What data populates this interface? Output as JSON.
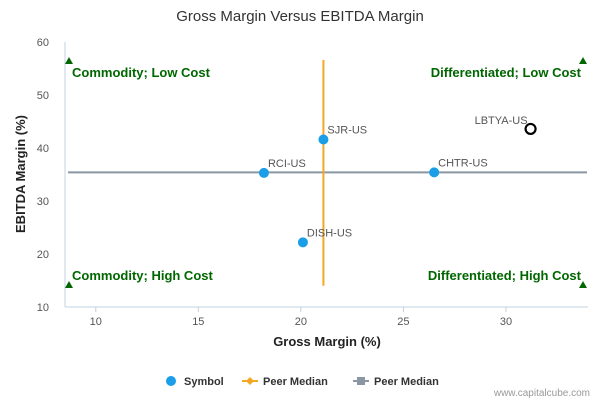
{
  "chart_data": {
    "type": "scatter",
    "title": "Gross Margin Versus EBITDA Margin",
    "xlabel": "Gross Margin (%)",
    "ylabel": "EBITDA Margin (%)",
    "xlim": [
      8.5,
      34
    ],
    "ylim": [
      10,
      60
    ],
    "xticks": [
      10,
      15,
      20,
      25,
      30
    ],
    "yticks": [
      10,
      20,
      30,
      40,
      50,
      60
    ],
    "points": [
      {
        "label": "SJR-US",
        "x": 21.1,
        "y": 41.6,
        "highlight": false
      },
      {
        "label": "RCI-US",
        "x": 18.2,
        "y": 35.3,
        "highlight": false
      },
      {
        "label": "CHTR-US",
        "x": 26.5,
        "y": 35.4,
        "highlight": false
      },
      {
        "label": "DISH-US",
        "x": 20.1,
        "y": 22.2,
        "highlight": false
      },
      {
        "label": "LBTYA-US",
        "x": 31.2,
        "y": 43.6,
        "highlight": true
      }
    ],
    "peer_median_x": 21.1,
    "peer_median_y": 35.4,
    "peer_median_x_range": [
      14.0,
      56.6
    ],
    "quadrants": {
      "top_left": "Commodity; Low Cost",
      "top_right": "Differentiated; Low Cost",
      "bottom_left": "Commodity; High Cost",
      "bottom_right": "Differentiated; High Cost"
    },
    "legend": [
      {
        "label": "Symbol",
        "kind": "symbol"
      },
      {
        "label": "Peer Median",
        "kind": "vertical-median"
      },
      {
        "label": "Peer Median",
        "kind": "horizontal-median"
      }
    ],
    "colors": {
      "point": "#1a9ee8",
      "highlight_stroke": "#000000",
      "vertical_median": "#f5a623",
      "horizontal_median": "#8a96a3",
      "quadrant_text": "#006600",
      "axis": "#c0d0e0"
    }
  },
  "credit": "www.capitalcube.com"
}
